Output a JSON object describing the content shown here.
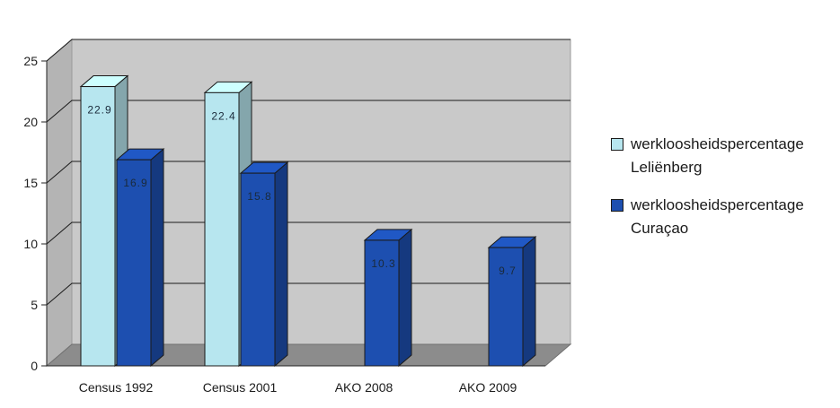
{
  "chart_data": {
    "type": "bar",
    "categories": [
      "Census 1992",
      "Census 2001",
      "AKO 2008",
      "AKO 2009"
    ],
    "series": [
      {
        "name": "werkloosheidspercentage Leliënberg",
        "name_lines": [
          "werkloosheidspercentage",
          "Leliënberg"
        ],
        "values": [
          22.9,
          22.4,
          null,
          null
        ],
        "labels": [
          "22.9",
          "22.4",
          "",
          ""
        ],
        "color": "#b7e6ef"
      },
      {
        "name": "werkloosheidspercentage Curaçao",
        "name_lines": [
          "werkloosheidspercentage",
          "Curaçao"
        ],
        "values": [
          16.9,
          15.8,
          10.3,
          9.7
        ],
        "labels": [
          "16.9",
          "15.8",
          "10.3",
          "9.7"
        ],
        "color": "#1d4fb0"
      }
    ],
    "ylim": [
      0,
      25
    ],
    "yticks": [
      0,
      5,
      10,
      15,
      20,
      25
    ],
    "grid": true,
    "legend_position": "right",
    "style": "3d-clustered-column"
  }
}
